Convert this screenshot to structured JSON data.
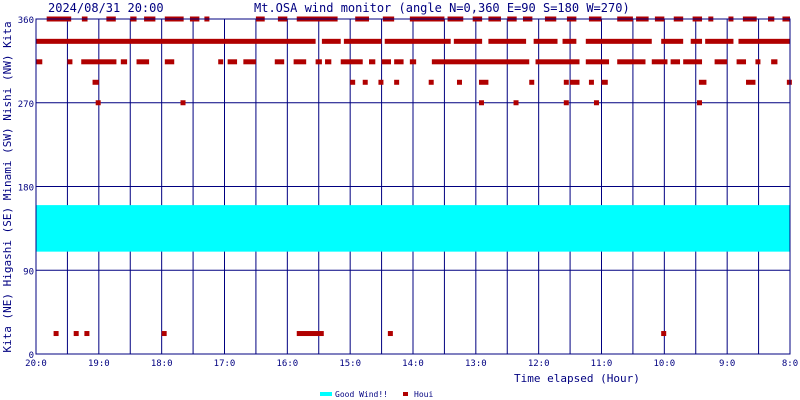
{
  "header": {
    "timestamp": "2024/08/31 20:00",
    "title": "Mt.OSA wind monitor (angle N=0,360 E=90 S=180 W=270)"
  },
  "ylabel": "Kita (NE) Higashi (SE) Minami (SW) Nishi (NW) Kita",
  "xlabel": "Time elapsed (Hour)",
  "legend": {
    "good_wind": "Good Wind!!",
    "houi": "Houi"
  },
  "colors": {
    "frame": "#000080",
    "band": "#00ffff",
    "point": "#b00000",
    "text": "#000080"
  },
  "chart_data": {
    "type": "scatter",
    "title": "Mt.OSA wind monitor (angle N=0,360 E=90 S=180 W=270)",
    "xlabel": "Time elapsed (Hour)",
    "ylabel": "Kita (NE) Higashi (SE) Minami (SW) Nishi (NW) Kita",
    "xlim": [
      20,
      8
    ],
    "ylim": [
      0,
      360
    ],
    "grid": true,
    "legend_placement": "bottom-center",
    "y_ticks": [
      0,
      90,
      180,
      270,
      360
    ],
    "x_ticks": [
      {
        "value": 20,
        "label": "20:0"
      },
      {
        "value": 19,
        "label": "19:0"
      },
      {
        "value": 18,
        "label": "18:0"
      },
      {
        "value": 17,
        "label": "17:0"
      },
      {
        "value": 16,
        "label": "16:0"
      },
      {
        "value": 15,
        "label": "15:0"
      },
      {
        "value": 14,
        "label": "14:0"
      },
      {
        "value": 13,
        "label": "13:0"
      },
      {
        "value": 12,
        "label": "12:0"
      },
      {
        "value": 11,
        "label": "11:0"
      },
      {
        "value": 10,
        "label": "10:0"
      },
      {
        "value": 9,
        "label": "9:0"
      },
      {
        "value": 8,
        "label": "8:0"
      }
    ],
    "band": {
      "name": "Good Wind!!",
      "y_from": 110,
      "y_to": 160
    },
    "series": [
      {
        "name": "Houi",
        "tracks": [
          {
            "y": 360,
            "runs": [
              [
                19.83,
                19.44
              ],
              [
                19.27,
                19.18
              ],
              [
                18.88,
                18.73
              ],
              [
                18.5,
                18.4
              ],
              [
                18.28,
                18.1
              ],
              [
                17.95,
                17.65
              ],
              [
                17.55,
                17.4
              ],
              [
                17.32,
                17.25
              ],
              [
                16.5,
                16.36
              ],
              [
                16.15,
                16.0
              ],
              [
                15.85,
                15.2
              ],
              [
                14.92,
                14.7
              ],
              [
                14.48,
                14.3
              ],
              [
                14.05,
                13.5
              ],
              [
                13.45,
                13.2
              ],
              [
                13.05,
                12.9
              ],
              [
                12.8,
                12.6
              ],
              [
                12.5,
                12.35
              ],
              [
                12.25,
                12.1
              ],
              [
                11.9,
                11.72
              ],
              [
                11.55,
                11.4
              ],
              [
                11.2,
                11.0
              ],
              [
                10.75,
                10.5
              ],
              [
                10.45,
                10.25
              ],
              [
                10.15,
                10.0
              ],
              [
                9.85,
                9.7
              ],
              [
                9.55,
                9.4
              ],
              [
                9.3,
                9.25
              ],
              [
                8.98,
                8.9
              ],
              [
                8.75,
                8.53
              ],
              [
                8.35,
                8.25
              ],
              [
                8.12,
                8.0
              ]
            ]
          },
          {
            "y": 336,
            "runs": [
              [
                20.0,
                15.55
              ],
              [
                15.45,
                15.15
              ],
              [
                15.1,
                14.5
              ],
              [
                14.45,
                13.4
              ],
              [
                13.35,
                12.9
              ],
              [
                12.8,
                12.2
              ],
              [
                12.08,
                11.7
              ],
              [
                11.62,
                11.4
              ],
              [
                11.25,
                10.2
              ],
              [
                10.05,
                9.7
              ],
              [
                9.58,
                9.4
              ],
              [
                9.35,
                8.9
              ],
              [
                8.82,
                8.0
              ]
            ]
          },
          {
            "y": 314,
            "runs": [
              [
                20.0,
                19.9
              ],
              [
                19.5,
                19.43
              ],
              [
                19.28,
                18.72
              ],
              [
                18.65,
                18.55
              ],
              [
                18.4,
                18.2
              ],
              [
                17.95,
                17.8
              ],
              [
                17.1,
                17.05
              ],
              [
                16.95,
                16.8
              ],
              [
                16.7,
                16.5
              ],
              [
                16.2,
                16.05
              ],
              [
                15.9,
                15.7
              ],
              [
                15.55,
                15.45
              ],
              [
                15.4,
                15.3
              ],
              [
                15.15,
                14.8
              ],
              [
                14.7,
                14.6
              ],
              [
                14.5,
                14.35
              ],
              [
                14.3,
                14.15
              ],
              [
                14.05,
                13.95
              ],
              [
                13.7,
                12.15
              ],
              [
                12.05,
                11.35
              ],
              [
                11.25,
                10.88
              ],
              [
                10.75,
                10.3
              ],
              [
                10.2,
                9.95
              ],
              [
                9.9,
                9.75
              ],
              [
                9.7,
                9.4
              ],
              [
                9.2,
                9.0
              ],
              [
                8.85,
                8.7
              ],
              [
                8.55,
                8.5
              ],
              [
                8.3,
                8.2
              ]
            ]
          },
          {
            "y": 292,
            "runs": [
              [
                19.1,
                19.0
              ],
              [
                15.0,
                14.95
              ],
              [
                14.8,
                14.75
              ],
              [
                14.55,
                14.5
              ],
              [
                14.3,
                14.25
              ],
              [
                13.75,
                13.7
              ],
              [
                13.3,
                13.25
              ],
              [
                12.95,
                12.8
              ],
              [
                12.15,
                12.1
              ],
              [
                11.6,
                11.55
              ],
              [
                11.5,
                11.35
              ],
              [
                11.2,
                11.15
              ],
              [
                11.0,
                10.9
              ],
              [
                9.45,
                9.33
              ],
              [
                8.7,
                8.55
              ],
              [
                8.05,
                8.0
              ]
            ]
          },
          {
            "y": 270,
            "runs": [
              [
                19.05,
                19.0
              ],
              [
                17.7,
                17.65
              ],
              [
                12.95,
                12.9
              ],
              [
                12.4,
                12.35
              ],
              [
                11.6,
                11.55
              ],
              [
                11.12,
                11.07
              ],
              [
                9.48,
                9.42
              ]
            ]
          },
          {
            "y": 22,
            "runs": [
              [
                19.72,
                19.67
              ],
              [
                19.4,
                19.33
              ],
              [
                19.23,
                19.15
              ],
              [
                18.0,
                17.95
              ],
              [
                15.85,
                15.42
              ],
              [
                14.4,
                14.35
              ],
              [
                10.05,
                9.97
              ]
            ]
          }
        ]
      }
    ]
  }
}
